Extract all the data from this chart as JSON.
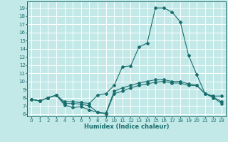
{
  "title": "",
  "xlabel": "Humidex (Indice chaleur)",
  "background_color": "#c2e8e8",
  "grid_color": "#ffffff",
  "line_color": "#1a6e6e",
  "xlim": [
    -0.5,
    23.5
  ],
  "ylim": [
    5.7,
    19.8
  ],
  "yticks": [
    6,
    7,
    8,
    9,
    10,
    11,
    12,
    13,
    14,
    15,
    16,
    17,
    18,
    19
  ],
  "xticks": [
    0,
    1,
    2,
    3,
    4,
    5,
    6,
    7,
    8,
    9,
    10,
    11,
    12,
    13,
    14,
    15,
    16,
    17,
    18,
    19,
    20,
    21,
    22,
    23
  ],
  "line1_x": [
    0,
    1,
    2,
    3,
    4,
    5,
    6,
    7,
    8,
    9,
    10,
    11,
    12,
    13,
    14,
    15,
    16,
    17,
    18,
    19,
    20,
    21,
    22,
    23
  ],
  "line1_y": [
    7.8,
    7.6,
    8.0,
    8.3,
    7.5,
    7.5,
    7.4,
    7.3,
    8.3,
    8.5,
    9.5,
    11.8,
    11.9,
    14.2,
    14.7,
    19.0,
    19.0,
    18.5,
    17.3,
    13.2,
    10.8,
    8.5,
    8.2,
    8.2
  ],
  "line2_x": [
    0,
    1,
    2,
    3,
    4,
    5,
    6,
    7,
    8,
    9,
    10,
    11,
    12,
    13,
    14,
    15,
    16,
    17,
    18,
    19,
    20,
    21,
    22,
    23
  ],
  "line2_y": [
    7.8,
    7.6,
    8.0,
    8.3,
    7.3,
    7.3,
    7.2,
    7.0,
    6.2,
    6.1,
    8.8,
    9.2,
    9.5,
    9.8,
    10.0,
    10.2,
    10.2,
    10.0,
    10.0,
    9.7,
    9.5,
    8.5,
    8.1,
    7.5
  ],
  "line3_x": [
    0,
    1,
    2,
    3,
    4,
    5,
    6,
    7,
    8,
    9,
    10,
    11,
    12,
    13,
    14,
    15,
    16,
    17,
    18,
    19,
    20,
    21,
    22,
    23
  ],
  "line3_y": [
    7.8,
    7.6,
    8.0,
    8.3,
    7.1,
    6.8,
    6.9,
    6.5,
    6.2,
    6.0,
    8.5,
    8.8,
    9.2,
    9.5,
    9.7,
    9.9,
    10.0,
    9.8,
    9.8,
    9.5,
    9.5,
    8.5,
    8.0,
    7.3
  ]
}
